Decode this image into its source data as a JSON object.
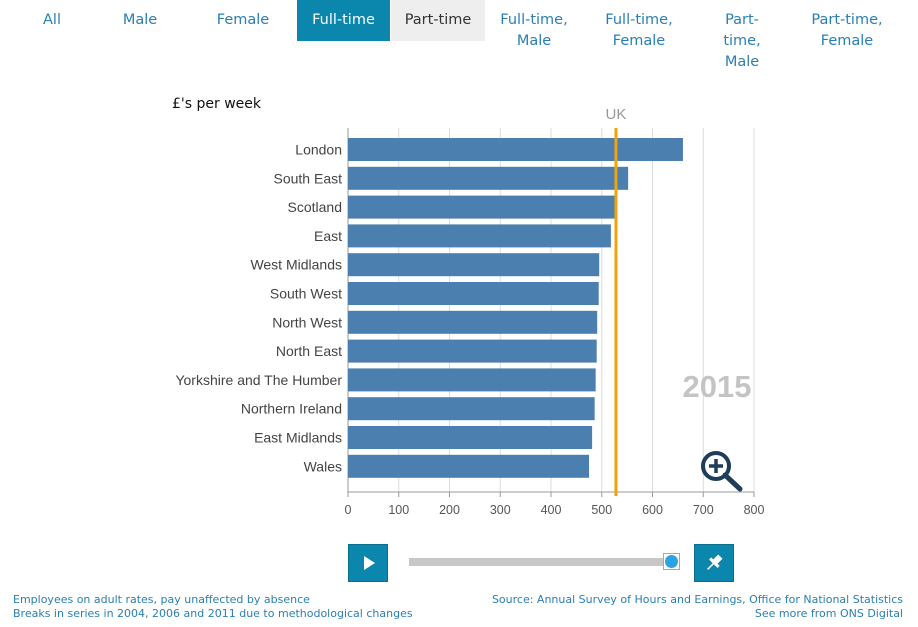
{
  "tabs": [
    {
      "label": "All",
      "state": "normal"
    },
    {
      "label": "Male",
      "state": "normal"
    },
    {
      "label": "Female",
      "state": "normal"
    },
    {
      "label": "Full-time",
      "state": "active"
    },
    {
      "label": "Part-time",
      "state": "hover"
    },
    {
      "label": "Full-time, Male",
      "state": "normal"
    },
    {
      "label": "Full-time, Female",
      "state": "normal"
    },
    {
      "label": "Part-time, Male",
      "state": "normal"
    },
    {
      "label": "Part-time, Female",
      "state": "normal"
    }
  ],
  "chart_data": {
    "type": "bar",
    "orientation": "horizontal",
    "title": "",
    "ylabel": "£'s per week",
    "categories": [
      "London",
      "South East",
      "Scotland",
      "East",
      "West Midlands",
      "South West",
      "North West",
      "North East",
      "Yorkshire and The Humber",
      "Northern Ireland",
      "East Midlands",
      "Wales"
    ],
    "values": [
      660,
      552,
      527,
      518,
      495,
      494,
      491,
      490,
      488,
      486,
      481,
      475
    ],
    "xlim": [
      0,
      800
    ],
    "xticks": [
      0,
      100,
      200,
      300,
      400,
      500,
      600,
      700,
      800
    ],
    "reference_line": {
      "label": "UK",
      "value": 528,
      "color": "#f0a30a"
    },
    "year_label": "2015",
    "bar_color": "#4a7fb0",
    "grid": true
  },
  "controls": {
    "play_icon": "play-icon",
    "pin_icon": "pin-icon",
    "zoom_icon": "zoom-in-icon",
    "slider_value": 1.0
  },
  "footer": {
    "left_line1": "Employees on adult rates, pay unaffected by absence",
    "left_line2": "Breaks in series in 2004, 2006 and 2011 due to methodological changes",
    "right_line1": "Source: Annual Survey of Hours and Earnings, Office for National Statistics",
    "right_line2": "See more from ONS Digital"
  }
}
